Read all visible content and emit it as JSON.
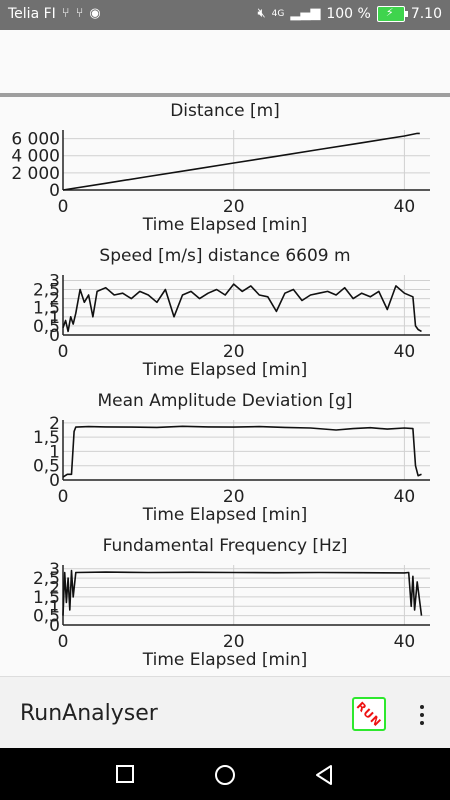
{
  "status_bar": {
    "carrier": "Telia FI",
    "left_icons": [
      "usb-icon",
      "usb-icon",
      "circle-app-icon"
    ],
    "network": "4G",
    "battery_percent": "100 %",
    "time": "7.10",
    "battery_color": "#3fd44d"
  },
  "app": {
    "title": "RunAnalyser",
    "run_label": "RUN",
    "accent_green": "#2ee82e",
    "accent_red": "#e11111"
  },
  "charts": [
    {
      "type": "line",
      "title": "Distance [m]",
      "xlabel": "Time Elapsed [min]",
      "x_ticks": [
        "0",
        "20",
        "40"
      ],
      "y_ticks": [
        "0",
        "2 000",
        "4 000",
        "6 000"
      ],
      "xlim": [
        0,
        43
      ],
      "ylim": [
        0,
        7000
      ],
      "series": [
        {
          "x": [
            0,
            5,
            10,
            15,
            20,
            25,
            30,
            35,
            40,
            41.5,
            41.8
          ],
          "y": [
            0,
            780,
            1570,
            2360,
            3150,
            3930,
            4720,
            5510,
            6300,
            6600,
            6609
          ]
        }
      ]
    },
    {
      "type": "line",
      "title": "Speed [m/s] distance 6609 m",
      "xlabel": "Time Elapsed [min]",
      "x_ticks": [
        "0",
        "20",
        "40"
      ],
      "y_ticks": [
        "0",
        "0,5",
        "1",
        "1,5",
        "2",
        "2,5",
        "3"
      ],
      "xlim": [
        0,
        43
      ],
      "ylim": [
        0,
        3.3
      ],
      "series": [
        {
          "x": [
            0,
            0.3,
            0.6,
            0.9,
            1.2,
            1.5,
            2,
            2.5,
            3,
            3.5,
            4,
            5,
            6,
            7,
            8,
            9,
            10,
            11,
            12,
            13,
            14,
            15,
            16,
            17,
            18,
            19,
            20,
            21,
            22,
            23,
            24,
            25,
            26,
            27,
            28,
            29,
            30,
            31,
            32,
            33,
            34,
            35,
            36,
            37,
            38,
            39,
            40,
            41,
            41.3,
            41.6,
            42
          ],
          "y": [
            0.4,
            0.8,
            0.2,
            1.0,
            0.6,
            1.2,
            2.5,
            1.8,
            2.2,
            1.0,
            2.4,
            2.6,
            2.2,
            2.3,
            2.0,
            2.4,
            2.2,
            1.8,
            2.5,
            1.0,
            2.2,
            2.4,
            2.0,
            2.3,
            2.5,
            2.2,
            2.8,
            2.4,
            2.7,
            2.2,
            2.1,
            1.3,
            2.3,
            2.5,
            1.9,
            2.2,
            2.3,
            2.4,
            2.2,
            2.6,
            2.0,
            2.3,
            2.1,
            2.4,
            1.4,
            2.7,
            2.3,
            2.1,
            0.5,
            0.3,
            0.2
          ]
        }
      ]
    },
    {
      "type": "line",
      "title": "Mean Amplitude Deviation [g]",
      "xlabel": "Time Elapsed [min]",
      "x_ticks": [
        "0",
        "20",
        "40"
      ],
      "y_ticks": [
        "0",
        "0,5",
        "1",
        "1,5",
        "2"
      ],
      "xlim": [
        0,
        43
      ],
      "ylim": [
        0,
        2.1
      ],
      "series": [
        {
          "x": [
            0,
            0.5,
            1.0,
            1.3,
            1.5,
            3,
            5,
            8,
            11,
            14,
            17,
            20,
            23,
            26,
            29,
            32,
            34,
            36,
            38,
            40,
            41.0,
            41.3,
            41.6,
            42
          ],
          "y": [
            0.1,
            0.2,
            0.2,
            1.7,
            1.85,
            1.87,
            1.86,
            1.85,
            1.84,
            1.88,
            1.86,
            1.85,
            1.87,
            1.84,
            1.82,
            1.75,
            1.8,
            1.83,
            1.78,
            1.82,
            1.8,
            0.5,
            0.15,
            0.2
          ]
        }
      ]
    },
    {
      "type": "line",
      "title": "Fundamental Frequency [Hz]",
      "xlabel": "Time Elapsed [min]",
      "x_ticks": [
        "0",
        "20",
        "40"
      ],
      "y_ticks": [
        "0",
        "0,5",
        "1",
        "1,5",
        "2",
        "2,5",
        "3"
      ],
      "xlim": [
        0,
        43
      ],
      "ylim": [
        0,
        3.2
      ],
      "series": [
        {
          "x": [
            0,
            0.2,
            0.4,
            0.6,
            0.8,
            1.0,
            1.2,
            1.5,
            5,
            10,
            15,
            20,
            25,
            30,
            35,
            40,
            40.5,
            40.8,
            41.0,
            41.2,
            41.5,
            42
          ],
          "y": [
            0.5,
            2.8,
            1.2,
            2.5,
            0.8,
            2.9,
            1.5,
            2.8,
            2.82,
            2.8,
            2.81,
            2.8,
            2.79,
            2.8,
            2.79,
            2.78,
            2.8,
            1.0,
            2.6,
            0.8,
            2.3,
            0.5
          ]
        }
      ]
    }
  ]
}
